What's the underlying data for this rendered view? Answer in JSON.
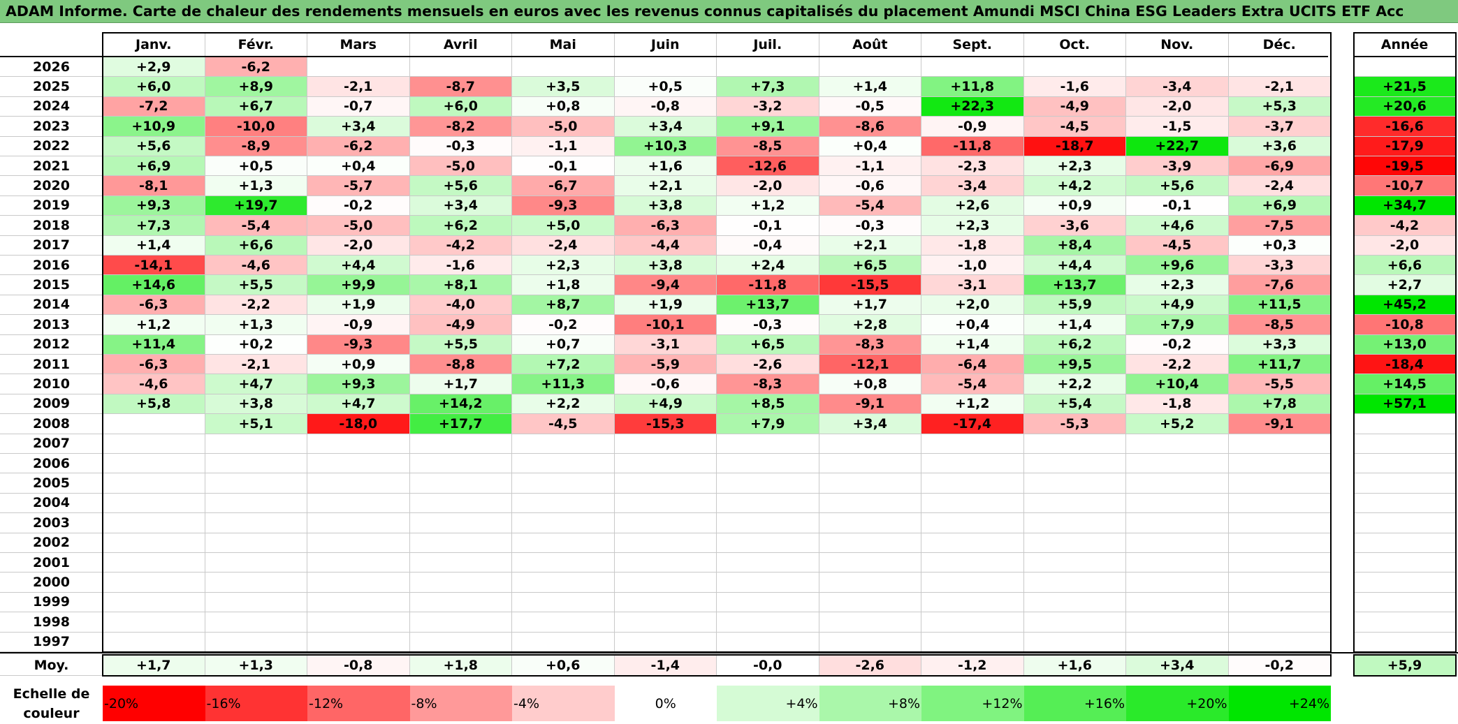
{
  "title": "ADAM Informe. Carte de chaleur des rendements mensuels en euros avec les revenus connus capitalisés du placement Amundi MSCI China ESG Leaders Extra UCITS ETF Acc",
  "chart_data": {
    "type": "heatmap",
    "months": [
      "Janv.",
      "Févr.",
      "Mars",
      "Avril",
      "Mai",
      "Juin",
      "Juil.",
      "Août",
      "Sept.",
      "Oct.",
      "Nov.",
      "Déc."
    ],
    "annual_label": "Année",
    "years": [
      2026,
      2025,
      2024,
      2023,
      2022,
      2021,
      2020,
      2019,
      2018,
      2017,
      2016,
      2015,
      2014,
      2013,
      2012,
      2011,
      2010,
      2009,
      2008,
      2007,
      2006,
      2005,
      2004,
      2003,
      2002,
      2001,
      2000,
      1999,
      1998,
      1997
    ],
    "values": [
      [
        "+2,9",
        "-6,2",
        "",
        "",
        "",
        "",
        "",
        "",
        "",
        "",
        "",
        ""
      ],
      [
        "+6,0",
        "+8,9",
        "-2,1",
        "-8,7",
        "+3,5",
        "+0,5",
        "+7,3",
        "+1,4",
        "+11,8",
        "-1,6",
        "-3,4",
        "-2,1"
      ],
      [
        "-7,2",
        "+6,7",
        "-0,7",
        "+6,0",
        "+0,8",
        "-0,8",
        "-3,2",
        "-0,5",
        "+22,3",
        "-4,9",
        "-2,0",
        "+5,3"
      ],
      [
        "+10,9",
        "-10,0",
        "+3,4",
        "-8,2",
        "-5,0",
        "+3,4",
        "+9,1",
        "-8,6",
        "-0,9",
        "-4,5",
        "-1,5",
        "-3,7"
      ],
      [
        "+5,6",
        "-8,9",
        "-6,2",
        "-0,3",
        "-1,1",
        "+10,3",
        "-8,5",
        "+0,4",
        "-11,8",
        "-18,7",
        "+22,7",
        "+3,6"
      ],
      [
        "+6,9",
        "+0,5",
        "+0,4",
        "-5,0",
        "-0,1",
        "+1,6",
        "-12,6",
        "-1,1",
        "-2,3",
        "+2,3",
        "-3,9",
        "-6,9"
      ],
      [
        "-8,1",
        "+1,3",
        "-5,7",
        "+5,6",
        "-6,7",
        "+2,1",
        "-2,0",
        "-0,6",
        "-3,4",
        "+4,2",
        "+5,6",
        "-2,4"
      ],
      [
        "+9,3",
        "+19,7",
        "-0,2",
        "+3,4",
        "-9,3",
        "+3,8",
        "+1,2",
        "-5,4",
        "+2,6",
        "+0,9",
        "-0,1",
        "+6,9"
      ],
      [
        "+7,3",
        "-5,4",
        "-5,0",
        "+6,2",
        "+5,0",
        "-6,3",
        "-0,1",
        "-0,3",
        "+2,3",
        "-3,6",
        "+4,6",
        "-7,5"
      ],
      [
        "+1,4",
        "+6,6",
        "-2,0",
        "-4,2",
        "-2,4",
        "-4,4",
        "-0,4",
        "+2,1",
        "-1,8",
        "+8,4",
        "-4,5",
        "+0,3"
      ],
      [
        "-14,1",
        "-4,6",
        "+4,4",
        "-1,6",
        "+2,3",
        "+3,8",
        "+2,4",
        "+6,5",
        "-1,0",
        "+4,4",
        "+9,6",
        "-3,3"
      ],
      [
        "+14,6",
        "+5,5",
        "+9,9",
        "+8,1",
        "+1,8",
        "-9,4",
        "-11,8",
        "-15,5",
        "-3,1",
        "+13,7",
        "+2,3",
        "-7,6"
      ],
      [
        "-6,3",
        "-2,2",
        "+1,9",
        "-4,0",
        "+8,7",
        "+1,9",
        "+13,7",
        "+1,7",
        "+2,0",
        "+5,9",
        "+4,9",
        "+11,5"
      ],
      [
        "+1,2",
        "+1,3",
        "-0,9",
        "-4,9",
        "-0,2",
        "-10,1",
        "-0,3",
        "+2,8",
        "+0,4",
        "+1,4",
        "+7,9",
        "-8,5"
      ],
      [
        "+11,4",
        "+0,2",
        "-9,3",
        "+5,5",
        "+0,7",
        "-3,1",
        "+6,5",
        "-8,3",
        "+1,4",
        "+6,2",
        "-0,2",
        "+3,3"
      ],
      [
        "-6,3",
        "-2,1",
        "+0,9",
        "-8,8",
        "+7,2",
        "-5,9",
        "-2,6",
        "-12,1",
        "-6,4",
        "+9,5",
        "-2,2",
        "+11,7"
      ],
      [
        "-4,6",
        "+4,7",
        "+9,3",
        "+1,7",
        "+11,3",
        "-0,6",
        "-8,3",
        "+0,8",
        "-5,4",
        "+2,2",
        "+10,4",
        "-5,5"
      ],
      [
        "+5,8",
        "+3,8",
        "+4,7",
        "+14,2",
        "+2,2",
        "+4,9",
        "+8,5",
        "-9,1",
        "+1,2",
        "+5,4",
        "-1,8",
        "+7,8"
      ],
      [
        "",
        "+5,1",
        "-18,0",
        "+17,7",
        "-4,5",
        "-15,3",
        "+7,9",
        "+3,4",
        "-17,4",
        "-5,3",
        "+5,2",
        "-9,1"
      ],
      [
        "",
        "",
        "",
        "",
        "",
        "",
        "",
        "",
        "",
        "",
        "",
        ""
      ],
      [
        "",
        "",
        "",
        "",
        "",
        "",
        "",
        "",
        "",
        "",
        "",
        ""
      ],
      [
        "",
        "",
        "",
        "",
        "",
        "",
        "",
        "",
        "",
        "",
        "",
        ""
      ],
      [
        "",
        "",
        "",
        "",
        "",
        "",
        "",
        "",
        "",
        "",
        "",
        ""
      ],
      [
        "",
        "",
        "",
        "",
        "",
        "",
        "",
        "",
        "",
        "",
        "",
        ""
      ],
      [
        "",
        "",
        "",
        "",
        "",
        "",
        "",
        "",
        "",
        "",
        "",
        ""
      ],
      [
        "",
        "",
        "",
        "",
        "",
        "",
        "",
        "",
        "",
        "",
        "",
        ""
      ],
      [
        "",
        "",
        "",
        "",
        "",
        "",
        "",
        "",
        "",
        "",
        "",
        ""
      ],
      [
        "",
        "",
        "",
        "",
        "",
        "",
        "",
        "",
        "",
        "",
        "",
        ""
      ],
      [
        "",
        "",
        "",
        "",
        "",
        "",
        "",
        "",
        "",
        "",
        "",
        ""
      ],
      [
        "",
        "",
        "",
        "",
        "",
        "",
        "",
        "",
        "",
        "",
        "",
        ""
      ]
    ],
    "annual": [
      "",
      "+21,5",
      "+20,6",
      "-16,6",
      "-17,9",
      "-19,5",
      "-10,7",
      "+34,7",
      "-4,2",
      "-2,0",
      "+6,6",
      "+2,7",
      "+45,2",
      "-10,8",
      "+13,0",
      "-18,4",
      "+14,5",
      "+57,1",
      "",
      "",
      "",
      "",
      "",
      "",
      "",
      "",
      "",
      "",
      "",
      ""
    ],
    "average_label": "Moy.",
    "average": [
      "+1,7",
      "+1,3",
      "-0,8",
      "+1,8",
      "+0,6",
      "-1,4",
      "-0,0",
      "-2,6",
      "-1,2",
      "+1,6",
      "+3,4",
      "-0,2"
    ],
    "average_annual": "+5,9",
    "legend_title": "Echelle de couleur",
    "legend_labels": [
      "-20%",
      "-16%",
      "-12%",
      "-8%",
      "-4%",
      "0%",
      "+4%",
      "+8%",
      "+12%",
      "+16%",
      "+20%",
      "+24%"
    ],
    "legend_values": [
      -20,
      -16,
      -12,
      -8,
      -4,
      0,
      4,
      8,
      12,
      16,
      20,
      24
    ],
    "colors": {
      "negative": "#ff0000",
      "zero": "#ffffff",
      "positive": "#00e600"
    }
  }
}
